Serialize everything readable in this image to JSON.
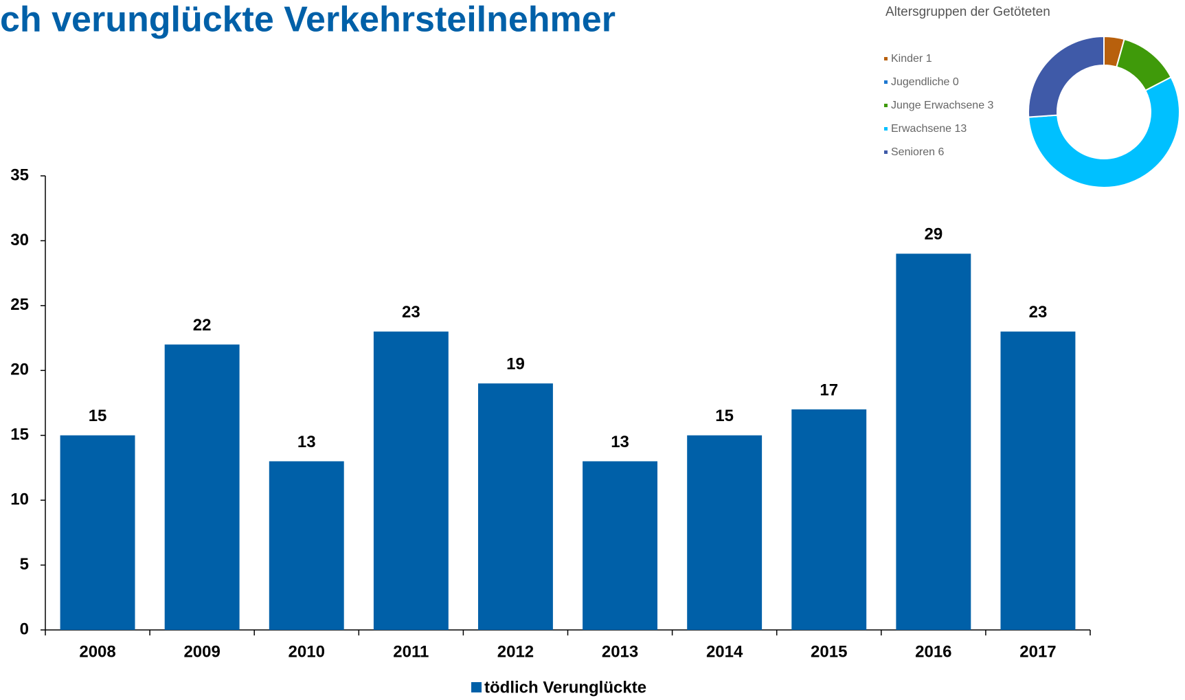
{
  "chart_data": [
    {
      "type": "bar",
      "title": "ch verunglückte Verkehrsteilnehmer",
      "categories": [
        "2008",
        "2009",
        "2010",
        "2011",
        "2012",
        "2013",
        "2014",
        "2015",
        "2016",
        "2017"
      ],
      "series": [
        {
          "name": "tödlich Verunglückte",
          "color": "#0060a8",
          "values": [
            15,
            22,
            13,
            23,
            19,
            13,
            15,
            17,
            29,
            23
          ]
        }
      ],
      "ylim": [
        0,
        35
      ],
      "yticks": [
        0,
        5,
        10,
        15,
        20,
        25,
        30,
        35
      ],
      "legend": "bottom"
    },
    {
      "type": "pie",
      "title": "Altersgruppen der Getöteten",
      "categories": [
        "Kinder",
        "Jugendliche",
        "Junge Erwachsene",
        "Erwachsene",
        "Senioren"
      ],
      "values": [
        1,
        0,
        3,
        13,
        6
      ],
      "colors": [
        "#b8600c",
        "#1e78d0",
        "#3f9a0a",
        "#00c0ff",
        "#3f5aa8"
      ],
      "donut": true,
      "legend": "left"
    }
  ]
}
